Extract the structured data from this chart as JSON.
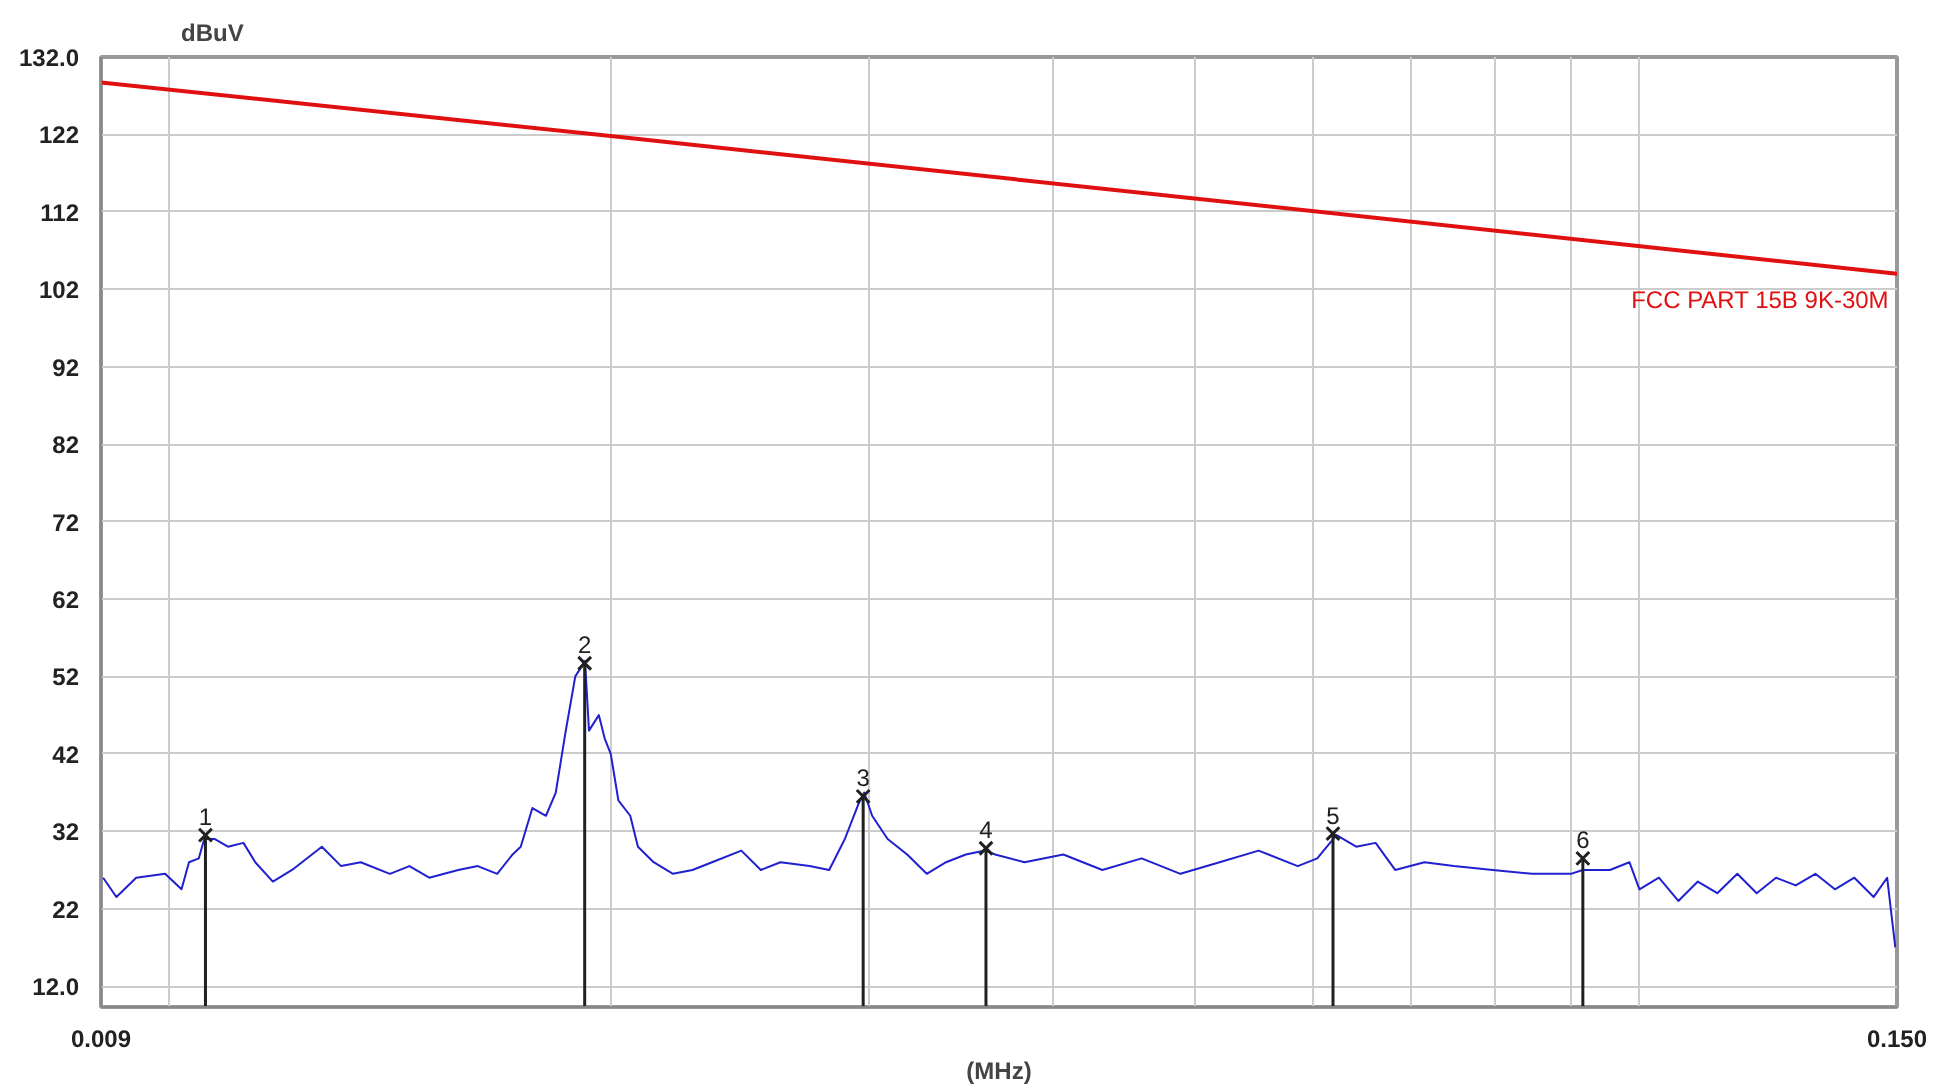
{
  "chart_data": {
    "type": "line",
    "xlabel": "(MHz)",
    "ylabel": "dBuV",
    "log": "x",
    "grid": true,
    "marker": "none",
    "line_style": "solid",
    "xlim": [
      0.009,
      0.15
    ],
    "xticks": [
      {
        "value": 0.009,
        "label": "0.009"
      },
      {
        "value": 0.01,
        "label": null
      },
      {
        "value": 0.02,
        "label": null
      },
      {
        "value": 0.03,
        "label": null
      },
      {
        "value": 0.04,
        "label": null
      },
      {
        "value": 0.05,
        "label": null
      },
      {
        "value": 0.06,
        "label": null
      },
      {
        "value": 0.07,
        "label": null
      },
      {
        "value": 0.08,
        "label": null
      },
      {
        "value": 0.09,
        "label": null
      },
      {
        "value": 0.1,
        "label": null
      },
      {
        "value": 0.15,
        "label": "0.150"
      }
    ],
    "ylim": [
      9.3,
      132
    ],
    "yticks": [
      {
        "value": 12,
        "label": "12.0"
      },
      22,
      32,
      42,
      52,
      62,
      72,
      82,
      92,
      102,
      112,
      122,
      {
        "value": 132,
        "label": "132.0"
      }
    ],
    "series": [
      {
        "name": "FCC PART 15B 9K-30M",
        "color": "#e01010",
        "x": [
          0.009,
          0.02,
          0.15
        ],
        "values": [
          128.7,
          121.8,
          104
        ]
      },
      {
        "color": "#2020d0",
        "x": [
          0.00903,
          0.00922,
          0.00951,
          0.00995,
          0.01021,
          0.01033,
          0.01049,
          0.01058,
          0.01075,
          0.01098,
          0.01125,
          0.01146,
          0.01178,
          0.01214,
          0.01272,
          0.01311,
          0.01352,
          0.01415,
          0.01459,
          0.01505,
          0.01575,
          0.01624,
          0.01674,
          0.01715,
          0.01737,
          0.01769,
          0.01807,
          0.01835,
          0.01864,
          0.01892,
          0.01921,
          0.01933,
          0.01963,
          0.01981,
          0.02,
          0.02024,
          0.02062,
          0.02087,
          0.02139,
          0.02205,
          0.02273,
          0.02344,
          0.02454,
          0.0253,
          0.02609,
          0.02731,
          0.02816,
          0.02886,
          0.02948,
          0.02975,
          0.03012,
          0.03086,
          0.03182,
          0.03281,
          0.03382,
          0.03488,
          0.03596,
          0.03652,
          0.03824,
          0.04064,
          0.0432,
          0.04594,
          0.04882,
          0.05191,
          0.05518,
          0.05867,
          0.06049,
          0.06141,
          0.06235,
          0.06429,
          0.06628,
          0.06834,
          0.07155,
          0.07492,
          0.07964,
          0.08466,
          0.09,
          0.09167,
          0.09568,
          0.09864,
          0.1002,
          0.1033,
          0.1065,
          0.1098,
          0.1132,
          0.1168,
          0.1204,
          0.1241,
          0.128,
          0.132,
          0.1361,
          0.1403,
          0.1446,
          0.1477,
          0.1496
        ],
        "values": [
          26,
          23.5,
          26,
          26.5,
          24.5,
          28,
          28.5,
          31,
          31,
          30,
          30.5,
          28,
          25.5,
          27,
          30,
          27.5,
          28,
          26.5,
          27.5,
          26,
          27,
          27.5,
          26.5,
          29,
          30,
          35,
          34,
          37,
          45,
          52,
          54,
          45,
          47,
          44,
          42,
          36,
          34,
          30,
          28,
          26.5,
          27,
          28,
          29.5,
          27,
          28,
          27.5,
          27,
          31,
          35.5,
          37,
          34,
          31,
          29,
          26.5,
          28,
          29,
          29.5,
          29,
          28,
          29,
          27,
          28.5,
          26.5,
          28,
          29.5,
          27.5,
          28.5,
          30,
          31.5,
          30,
          30.5,
          27,
          28,
          27.5,
          27,
          26.5,
          26.5,
          27,
          27,
          28,
          24.5,
          26,
          23,
          25.5,
          24,
          26.5,
          24,
          26,
          25,
          26.5,
          24.5,
          26,
          23.5,
          26,
          17
        ]
      },
      {
        "type": "lollipop",
        "color": "#202020",
        "marker": "cross",
        "x": [
          0.0106,
          0.0192,
          0.0297,
          0.036,
          0.062,
          0.0917
        ],
        "values": [
          31.5,
          53.7,
          36.5,
          29.8,
          31.7,
          28.5
        ]
      }
    ],
    "annotations": [
      {
        "text": "1",
        "x": 0.0106,
        "y": 31.5
      },
      {
        "text": "2",
        "x": 0.0192,
        "y": 53.7
      },
      {
        "text": "3",
        "x": 0.0297,
        "y": 36.5
      },
      {
        "text": "4",
        "x": 0.036,
        "y": 29.8
      },
      {
        "text": "5",
        "x": 0.062,
        "y": 31.7
      },
      {
        "text": "6",
        "x": 0.0917,
        "y": 28.5
      }
    ]
  }
}
